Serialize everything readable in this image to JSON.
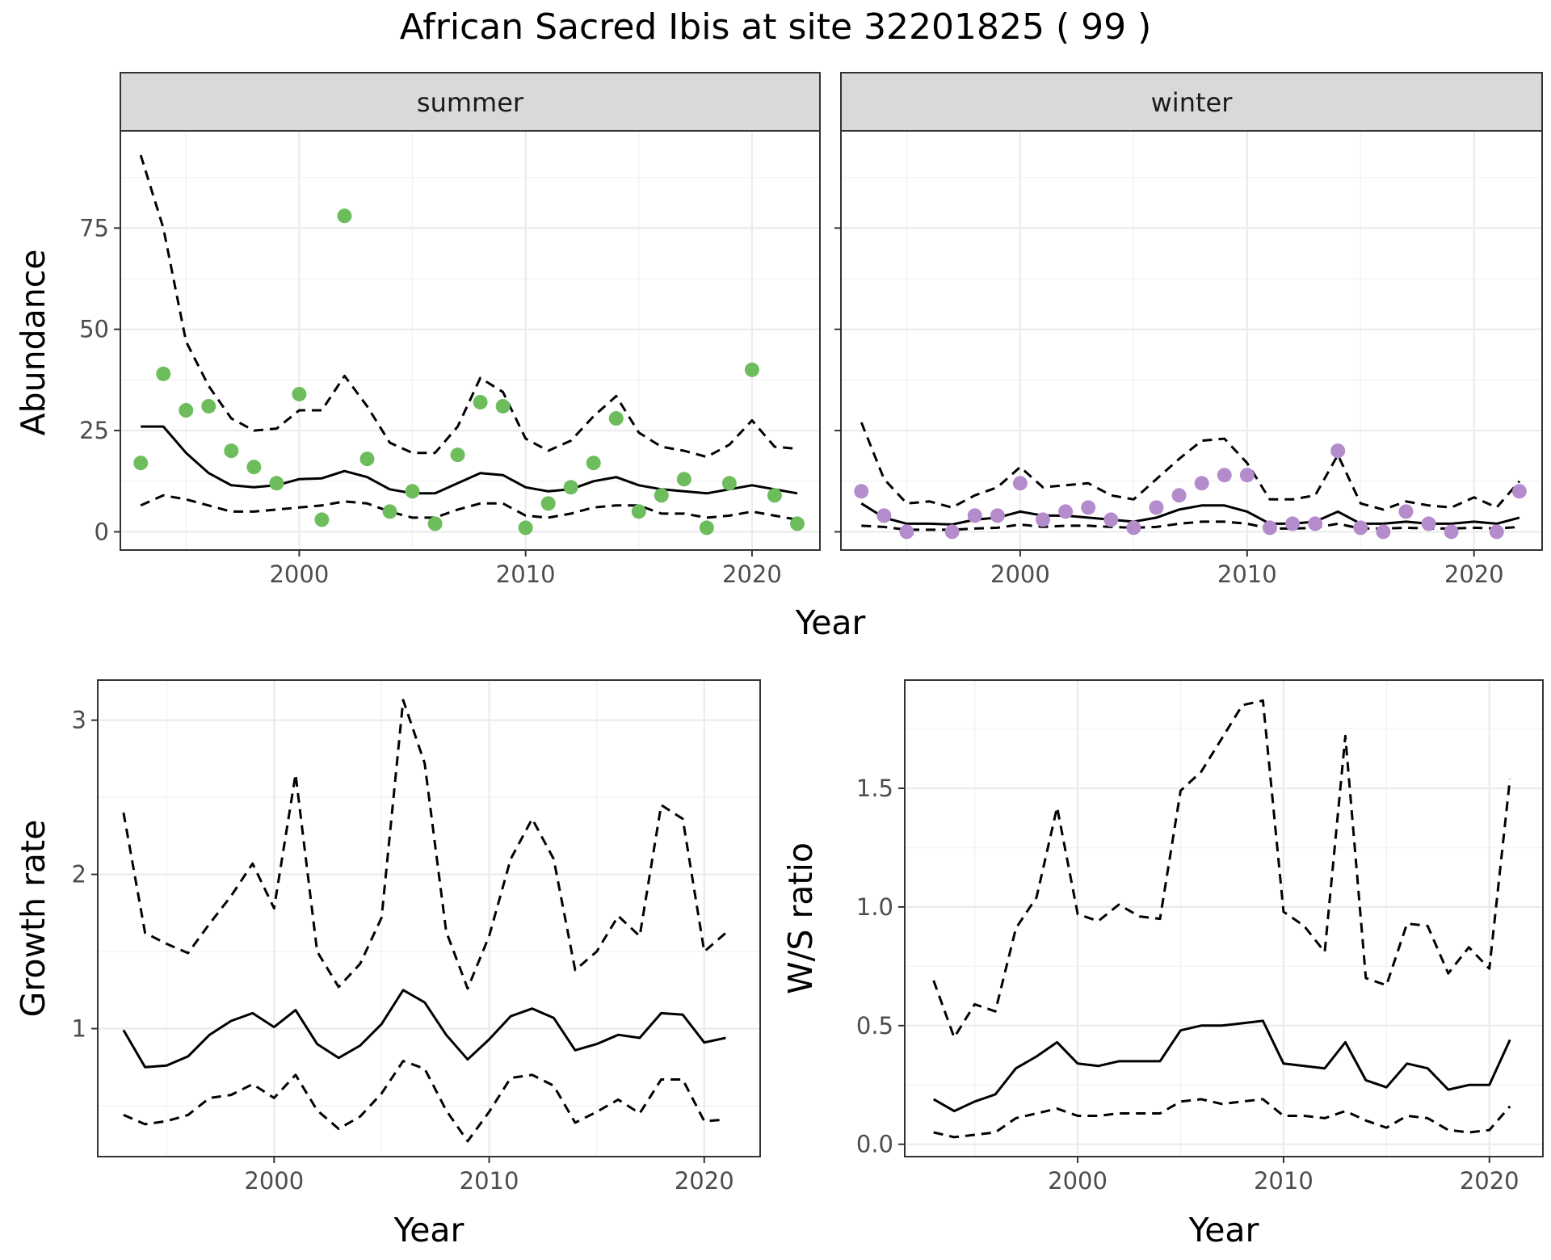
{
  "title": "African Sacred Ibis at site 32201825 ( 99 )",
  "colors": {
    "summer_points": "#6dbd5c",
    "winter_points": "#b48ccc",
    "lines": "#000000",
    "panel_border": "#333333",
    "strip_fill": "#d9d9d9",
    "grid_major": "#ebebeb",
    "grid_minor": "#f3f3f3",
    "tick_text": "#4d4d4d"
  },
  "chart_data": [
    {
      "id": "abundance",
      "type": "scatter",
      "facets": [
        "summer",
        "winter"
      ],
      "xlabel": "Year",
      "ylabel": "Abundance",
      "x_ticks": [
        2000,
        2010,
        2020
      ],
      "y_ticks": [
        0,
        25,
        50,
        75
      ],
      "xlim": [
        1992.1,
        2023.0
      ],
      "ylim": [
        -4.5,
        99
      ],
      "grid": true,
      "legend": "none",
      "panels": {
        "summer": {
          "points": {
            "x": [
              1993,
              1994,
              1995,
              1996,
              1997,
              1998,
              1999,
              2000,
              2001,
              2002,
              2003,
              2004,
              2005,
              2006,
              2007,
              2008,
              2009,
              2010,
              2011,
              2012,
              2013,
              2014,
              2015,
              2016,
              2017,
              2018,
              2019,
              2020,
              2021,
              2022
            ],
            "y": [
              17,
              39,
              30,
              31,
              20,
              16,
              12,
              34,
              3,
              78,
              18,
              5,
              10,
              2,
              19,
              32,
              31,
              1,
              7,
              11,
              17,
              28,
              5,
              9,
              13,
              1,
              12,
              40,
              9,
              2
            ]
          },
          "mean": {
            "x": [
              1993,
              1994,
              1995,
              1996,
              1997,
              1998,
              1999,
              2000,
              2001,
              2002,
              2003,
              2004,
              2005,
              2006,
              2007,
              2008,
              2009,
              2010,
              2011,
              2012,
              2013,
              2014,
              2015,
              2016,
              2017,
              2018,
              2019,
              2020,
              2021,
              2022
            ],
            "y": [
              26,
              26,
              19.5,
              14.5,
              11.5,
              11,
              11.5,
              13,
              13.2,
              15,
              13.5,
              10.5,
              9.5,
              9.5,
              12,
              14.5,
              14,
              11,
              10,
              10.5,
              12.5,
              13.5,
              11.5,
              10.5,
              10,
              9.5,
              10.5,
              11.5,
              10.5,
              9.5
            ]
          },
          "upper": {
            "x": [
              1993,
              1994,
              1995,
              1996,
              1997,
              1998,
              1999,
              2000,
              2001,
              2002,
              2003,
              2004,
              2005,
              2006,
              2007,
              2008,
              2009,
              2010,
              2011,
              2012,
              2013,
              2014,
              2015,
              2016,
              2017,
              2018,
              2019,
              2020,
              2021,
              2022
            ],
            "y": [
              93,
              75,
              47,
              36,
              28,
              25,
              25.5,
              30,
              30,
              38.5,
              31,
              22,
              19.5,
              19.5,
              26,
              38,
              34.5,
              23,
              20,
              22.5,
              28.5,
              33.5,
              24.5,
              21,
              20,
              18.5,
              21.5,
              27.5,
              21,
              20.5
            ]
          },
          "lower": {
            "x": [
              1993,
              1994,
              1995,
              1996,
              1997,
              1998,
              1999,
              2000,
              2001,
              2002,
              2003,
              2004,
              2005,
              2006,
              2007,
              2008,
              2009,
              2010,
              2011,
              2012,
              2013,
              2014,
              2015,
              2016,
              2017,
              2018,
              2019,
              2020,
              2021,
              2022
            ],
            "y": [
              6.5,
              9,
              8,
              6.5,
              5,
              5,
              5.5,
              6,
              6.5,
              7.5,
              7,
              5,
              3.5,
              3.5,
              5.5,
              7,
              7,
              4,
              3.5,
              4.5,
              6,
              6.5,
              6.5,
              4.5,
              4.5,
              3.5,
              4,
              5,
              4,
              3
            ]
          }
        },
        "winter": {
          "points": {
            "x": [
              1993,
              1994,
              1995,
              1997,
              1998,
              1999,
              2000,
              2001,
              2002,
              2003,
              2004,
              2005,
              2006,
              2007,
              2008,
              2009,
              2010,
              2011,
              2012,
              2013,
              2014,
              2015,
              2016,
              2017,
              2018,
              2019,
              2021,
              2022
            ],
            "y": [
              10,
              4,
              0,
              0,
              4,
              4,
              12,
              3,
              5,
              6,
              3,
              1,
              6,
              9,
              12,
              14,
              14,
              1,
              2,
              2,
              20,
              1,
              0,
              5,
              2,
              0,
              0,
              10
            ]
          },
          "mean": {
            "x": [
              1993,
              1994,
              1995,
              1996,
              1997,
              1998,
              1999,
              2000,
              2001,
              2002,
              2003,
              2004,
              2005,
              2006,
              2007,
              2008,
              2009,
              2010,
              2011,
              2012,
              2013,
              2014,
              2015,
              2016,
              2017,
              2018,
              2019,
              2020,
              2021,
              2022
            ],
            "y": [
              7,
              3.5,
              2,
              2,
              1.8,
              3,
              3.5,
              5,
              4,
              4,
              3.5,
              3,
              2.5,
              3.5,
              5.5,
              6.5,
              6.5,
              5,
              2,
              2,
              2.5,
              5,
              2,
              2,
              2.5,
              2,
              2,
              2.5,
              2,
              3.5
            ]
          },
          "upper": {
            "x": [
              1993,
              1994,
              1995,
              1996,
              1997,
              1998,
              1999,
              2000,
              2001,
              2002,
              2003,
              2004,
              2005,
              2006,
              2007,
              2008,
              2009,
              2010,
              2011,
              2012,
              2013,
              2014,
              2015,
              2016,
              2017,
              2018,
              2019,
              2020,
              2021,
              2022
            ],
            "y": [
              27,
              13,
              7,
              7.5,
              6,
              9,
              11,
              16,
              11,
              11.5,
              12,
              9,
              8,
              13,
              18,
              22.5,
              23,
              17,
              8,
              8,
              9,
              19,
              7,
              5.5,
              7.5,
              6.5,
              6,
              8.5,
              6,
              12.5
            ]
          },
          "lower": {
            "x": [
              1993,
              1994,
              1995,
              1996,
              1997,
              1998,
              1999,
              2000,
              2001,
              2002,
              2003,
              2004,
              2005,
              2006,
              2007,
              2008,
              2009,
              2010,
              2011,
              2012,
              2013,
              2014,
              2015,
              2016,
              2017,
              2018,
              2019,
              2020,
              2021,
              2022
            ],
            "y": [
              1.5,
              1.2,
              0.5,
              0.5,
              0.5,
              0.8,
              1,
              1.8,
              1.2,
              1.5,
              1.5,
              1.2,
              1,
              1.2,
              2,
              2.5,
              2.5,
              2,
              0.8,
              0.8,
              1,
              2,
              0.8,
              0.8,
              1,
              0.8,
              0.8,
              1,
              0.8,
              1.2
            ]
          }
        }
      }
    },
    {
      "id": "growth",
      "type": "line",
      "xlabel": "Year",
      "ylabel": "Growth rate",
      "x_ticks": [
        2000,
        2010,
        2020
      ],
      "y_ticks": [
        1,
        2,
        3
      ],
      "xlim": [
        1991.8,
        2022.6
      ],
      "ylim": [
        0.17,
        3.26
      ],
      "grid": true,
      "legend": "none",
      "x": [
        1993,
        1994,
        1995,
        1996,
        1997,
        1998,
        1999,
        2000,
        2001,
        2002,
        2003,
        2004,
        2005,
        2006,
        2007,
        2008,
        2009,
        2010,
        2011,
        2012,
        2013,
        2014,
        2015,
        2016,
        2017,
        2018,
        2019,
        2020,
        2021
      ],
      "series": [
        {
          "values": [
            0.99,
            0.75,
            0.76,
            0.82,
            0.96,
            1.05,
            1.1,
            1.01,
            1.12,
            0.9,
            0.81,
            0.89,
            1.03,
            1.25,
            1.17,
            0.96,
            0.8,
            0.93,
            1.08,
            1.13,
            1.07,
            0.86,
            0.9,
            0.96,
            0.94,
            1.1,
            1.09,
            0.91,
            0.94
          ],
          "style": "solid"
        },
        {
          "values": [
            2.4,
            1.62,
            1.55,
            1.49,
            1.68,
            1.86,
            2.07,
            1.78,
            2.65,
            1.5,
            1.27,
            1.42,
            1.72,
            3.13,
            2.72,
            1.63,
            1.26,
            1.6,
            2.1,
            2.36,
            2.1,
            1.38,
            1.5,
            1.73,
            1.6,
            2.45,
            2.36,
            1.5,
            1.62
          ],
          "style": "dashed"
        },
        {
          "values": [
            0.44,
            0.38,
            0.4,
            0.44,
            0.55,
            0.57,
            0.64,
            0.55,
            0.7,
            0.47,
            0.35,
            0.43,
            0.58,
            0.79,
            0.74,
            0.47,
            0.27,
            0.46,
            0.68,
            0.7,
            0.63,
            0.39,
            0.46,
            0.54,
            0.45,
            0.67,
            0.67,
            0.4,
            0.41
          ],
          "style": "dashed"
        }
      ]
    },
    {
      "id": "ws_ratio",
      "type": "line",
      "xlabel": "Year",
      "ylabel": "W/S ratio",
      "x_ticks": [
        2000,
        2010,
        2020
      ],
      "y_ticks": [
        0.0,
        0.5,
        1.0,
        1.5
      ],
      "y_tick_labels": [
        "0.0",
        "0.5",
        "1.0",
        "1.5"
      ],
      "xlim": [
        1991.6,
        2022.6
      ],
      "ylim": [
        -0.052,
        1.956
      ],
      "grid": true,
      "legend": "none",
      "x": [
        1993,
        1994,
        1995,
        1996,
        1997,
        1998,
        1999,
        2000,
        2001,
        2002,
        2003,
        2004,
        2005,
        2006,
        2007,
        2008,
        2009,
        2010,
        2011,
        2012,
        2013,
        2014,
        2015,
        2016,
        2017,
        2018,
        2019,
        2020,
        2021
      ],
      "series": [
        {
          "values": [
            0.19,
            0.14,
            0.18,
            0.21,
            0.32,
            0.37,
            0.43,
            0.34,
            0.33,
            0.35,
            0.35,
            0.35,
            0.48,
            0.5,
            0.5,
            0.51,
            0.52,
            0.34,
            0.33,
            0.32,
            0.43,
            0.27,
            0.24,
            0.34,
            0.32,
            0.23,
            0.25,
            0.25,
            0.44
          ],
          "style": "solid"
        },
        {
          "values": [
            0.69,
            0.45,
            0.59,
            0.56,
            0.91,
            1.04,
            1.42,
            0.97,
            0.94,
            1.01,
            0.96,
            0.95,
            1.49,
            1.57,
            1.71,
            1.85,
            1.87,
            0.98,
            0.92,
            0.81,
            1.72,
            0.7,
            0.67,
            0.93,
            0.92,
            0.72,
            0.83,
            0.74,
            1.54
          ],
          "style": "dashed"
        },
        {
          "values": [
            0.05,
            0.03,
            0.04,
            0.05,
            0.11,
            0.13,
            0.15,
            0.12,
            0.12,
            0.13,
            0.13,
            0.13,
            0.18,
            0.19,
            0.17,
            0.18,
            0.19,
            0.12,
            0.12,
            0.11,
            0.14,
            0.1,
            0.07,
            0.12,
            0.11,
            0.06,
            0.05,
            0.06,
            0.16
          ],
          "style": "dashed"
        }
      ]
    }
  ]
}
